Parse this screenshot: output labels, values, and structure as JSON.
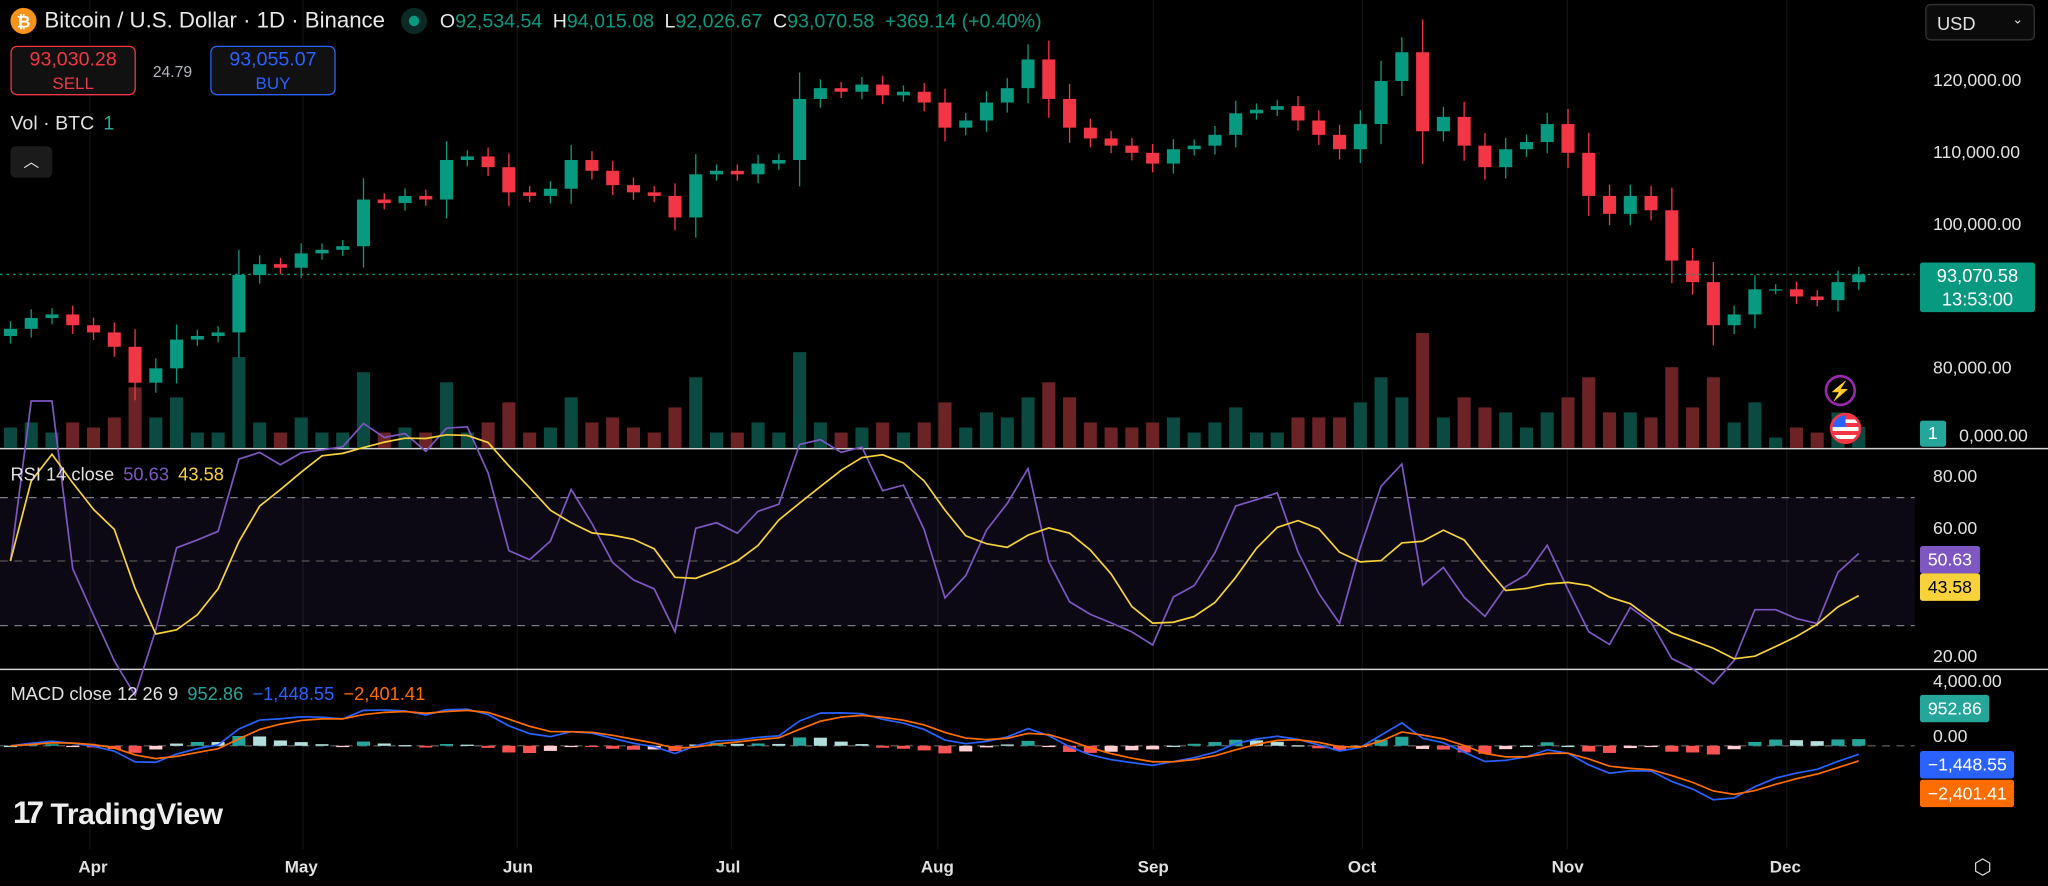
{
  "header": {
    "title": "Bitcoin / U.S. Dollar · 1D · Binance",
    "logo_letter": "₿",
    "open_label": "O",
    "open": "92,534.54",
    "high_label": "H",
    "high": "94,015.08",
    "low_label": "L",
    "low": "92,026.67",
    "close_label": "C",
    "close": "93,070.58",
    "change": "+369.14 (+0.40%)"
  },
  "trade": {
    "sell_price": "93,030.28",
    "sell_label": "SELL",
    "spread": "24.79",
    "buy_price": "93,055.07",
    "buy_label": "BUY"
  },
  "volume_legend": {
    "label": "Vol · BTC",
    "value": "1"
  },
  "collapse_icon": "chevron-up-icon",
  "currency": {
    "selected": "USD"
  },
  "price_axis": [
    "120,000.00",
    "110,000.00",
    "100,000.00",
    "80,000.00",
    "0,000.00"
  ],
  "last_price_tag": {
    "price": "93,070.58",
    "countdown": "13:53:00"
  },
  "volume_tag": "1",
  "rsi": {
    "label": "RSI 14 close",
    "rsi_value": "50.63",
    "ma_value": "43.58",
    "axis": [
      "80.00",
      "60.00",
      "20.00"
    ]
  },
  "macd": {
    "label": "MACD close 12 26 9",
    "hist_value": "952.86",
    "macd_value": "−1,448.55",
    "signal_value": "−2,401.41",
    "axis": [
      "4,000.00",
      "0.00"
    ]
  },
  "time_axis": [
    "Apr",
    "May",
    "Jun",
    "Jul",
    "Aug",
    "Sep",
    "Oct",
    "Nov",
    "Dec"
  ],
  "brand": "TradingView",
  "colors": {
    "up": "#089981",
    "down": "#f23645",
    "rsi": "#7e57c2",
    "rsi_ma": "#f7d23a",
    "macd": "#2962ff",
    "signal": "#ff6d00",
    "hist_up": "#26a69a",
    "hist_down": "#ff5252"
  },
  "chart_data": {
    "type": "candlestick",
    "title": "Bitcoin / U.S. Dollar · 1D · Binance",
    "x_range": [
      "Mar",
      "Dec"
    ],
    "ylim": [
      75000,
      127000
    ],
    "close": [
      85500,
      87000,
      87500,
      86000,
      85000,
      83000,
      78000,
      80000,
      84000,
      84500,
      85000,
      93000,
      94500,
      94000,
      96000,
      96500,
      97000,
      103500,
      103000,
      104000,
      103500,
      109000,
      109500,
      108000,
      104500,
      104000,
      105000,
      109000,
      107500,
      105500,
      104500,
      104000,
      101000,
      107000,
      107500,
      107000,
      108500,
      109000,
      117500,
      119000,
      118500,
      119500,
      118000,
      118500,
      117000,
      113500,
      114500,
      117000,
      119000,
      123000,
      117500,
      113500,
      112000,
      111000,
      110000,
      108500,
      110500,
      111000,
      112500,
      115500,
      116000,
      116500,
      114500,
      112500,
      110500,
      114000,
      120000,
      124000,
      113000,
      115000,
      111000,
      108000,
      110500,
      111500,
      114000,
      110000,
      104000,
      101500,
      104000,
      102000,
      95000,
      92000,
      86000,
      87500,
      91000,
      91000,
      90000,
      89500,
      92000,
      93070.58
    ],
    "last_close": 93070.58
  }
}
